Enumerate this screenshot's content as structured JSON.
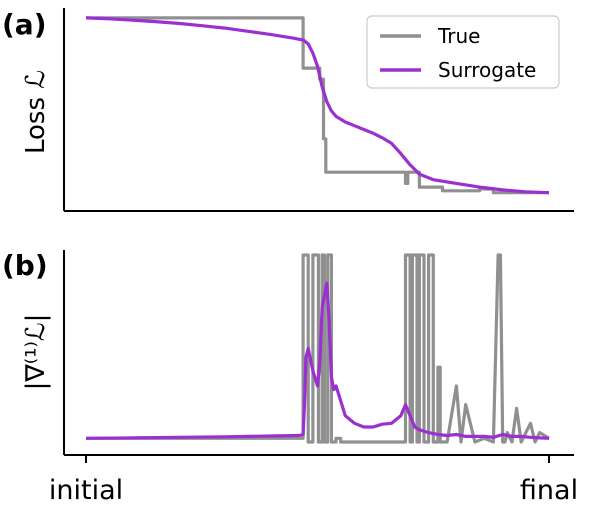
{
  "chart_data": [
    {
      "panel_label": "(a)",
      "type": "line",
      "ylabel": "Loss ℒ",
      "xlim": [
        0,
        1
      ],
      "ylim": [
        0,
        1
      ],
      "legend": {
        "placement": "top-right",
        "entries": [
          "True",
          "Surrogate"
        ]
      },
      "colors": {
        "True": "#909090",
        "Surrogate": "#9b30d0"
      },
      "grid": false,
      "series": [
        {
          "name": "True",
          "x": [
            0,
            0.469,
            0.469,
            0.505,
            0.505,
            0.513,
            0.513,
            0.518,
            0.518,
            0.525,
            0.525,
            0.69,
            0.69,
            0.695,
            0.695,
            0.72,
            0.72,
            0.77,
            0.77,
            0.85,
            0.85,
            0.88,
            0.88,
            1.0
          ],
          "y": [
            0.99,
            0.99,
            0.72,
            0.72,
            0.66,
            0.66,
            0.34,
            0.34,
            0.16,
            0.16,
            0.16,
            0.16,
            0.1,
            0.1,
            0.16,
            0.16,
            0.08,
            0.08,
            0.06,
            0.06,
            0.07,
            0.07,
            0.05,
            0.05
          ]
        },
        {
          "name": "Surrogate",
          "x": [
            0,
            0.05,
            0.1,
            0.15,
            0.2,
            0.25,
            0.3,
            0.35,
            0.4,
            0.45,
            0.47,
            0.48,
            0.49,
            0.5,
            0.51,
            0.52,
            0.53,
            0.54,
            0.56,
            0.58,
            0.6,
            0.62,
            0.64,
            0.66,
            0.68,
            0.7,
            0.72,
            0.75,
            0.8,
            0.85,
            0.9,
            0.95,
            1.0
          ],
          "y": [
            0.99,
            0.985,
            0.978,
            0.97,
            0.96,
            0.948,
            0.935,
            0.918,
            0.9,
            0.88,
            0.87,
            0.85,
            0.8,
            0.73,
            0.62,
            0.54,
            0.49,
            0.46,
            0.43,
            0.41,
            0.39,
            0.37,
            0.345,
            0.315,
            0.26,
            0.2,
            0.15,
            0.12,
            0.1,
            0.08,
            0.065,
            0.055,
            0.05
          ]
        }
      ]
    },
    {
      "panel_label": "(b)",
      "type": "line",
      "ylabel": "|∇⁽¹⁾ℒ|",
      "xlim": [
        0,
        1
      ],
      "ylim": [
        0,
        1
      ],
      "xtick_labels": [
        "initial",
        "final"
      ],
      "grid": false,
      "series": [
        {
          "name": "True",
          "x": [
            0,
            0.469,
            0.469,
            0.48,
            0.48,
            0.49,
            0.49,
            0.502,
            0.502,
            0.51,
            0.51,
            0.515,
            0.515,
            0.522,
            0.522,
            0.53,
            0.53,
            0.54,
            0.54,
            0.55,
            0.55,
            0.69,
            0.69,
            0.7,
            0.7,
            0.705,
            0.705,
            0.715,
            0.715,
            0.72,
            0.72,
            0.73,
            0.73,
            0.74,
            0.74,
            0.75,
            0.75,
            0.76,
            0.76,
            0.765,
            0.765,
            0.78,
            0.8,
            0.81,
            0.82,
            0.84,
            0.86,
            0.88,
            0.89,
            0.895,
            0.9,
            0.905,
            0.91,
            0.92,
            0.93,
            0.94,
            0.96,
            0.97,
            0.98,
            1.0
          ],
          "y": [
            0.02,
            0.02,
            1.0,
            1.0,
            0.0,
            0.0,
            1.0,
            1.0,
            0.0,
            0.0,
            1.0,
            1.0,
            0.0,
            0.0,
            1.0,
            1.0,
            0.0,
            0.0,
            0.02,
            0.02,
            0.0,
            0.0,
            1.0,
            1.0,
            0.0,
            0.0,
            1.0,
            1.0,
            0.0,
            0.0,
            1.0,
            1.0,
            0.0,
            0.0,
            1.0,
            1.0,
            0.0,
            0.0,
            0.4,
            0.4,
            0.0,
            0.0,
            0.3,
            0.0,
            0.2,
            0.0,
            0.02,
            0.0,
            1.0,
            1.0,
            0.0,
            0.0,
            0.05,
            0.0,
            0.18,
            0.0,
            0.1,
            0.0,
            0.05,
            0.02
          ]
        },
        {
          "name": "Surrogate",
          "x": [
            0,
            0.1,
            0.2,
            0.3,
            0.4,
            0.46,
            0.469,
            0.472,
            0.475,
            0.48,
            0.49,
            0.5,
            0.505,
            0.51,
            0.52,
            0.525,
            0.53,
            0.535,
            0.54,
            0.55,
            0.56,
            0.58,
            0.6,
            0.62,
            0.64,
            0.66,
            0.68,
            0.69,
            0.7,
            0.71,
            0.72,
            0.74,
            0.76,
            0.78,
            0.8,
            0.82,
            0.84,
            0.86,
            0.88,
            0.9,
            0.92,
            0.94,
            0.96,
            0.98,
            1.0
          ],
          "y": [
            0.02,
            0.022,
            0.025,
            0.028,
            0.032,
            0.035,
            0.04,
            0.2,
            0.45,
            0.5,
            0.38,
            0.3,
            0.42,
            0.72,
            0.85,
            0.65,
            0.35,
            0.28,
            0.3,
            0.22,
            0.14,
            0.1,
            0.08,
            0.08,
            0.095,
            0.1,
            0.14,
            0.2,
            0.14,
            0.08,
            0.065,
            0.05,
            0.04,
            0.035,
            0.04,
            0.03,
            0.03,
            0.03,
            0.025,
            0.04,
            0.03,
            0.03,
            0.025,
            0.022,
            0.02
          ]
        }
      ]
    }
  ]
}
